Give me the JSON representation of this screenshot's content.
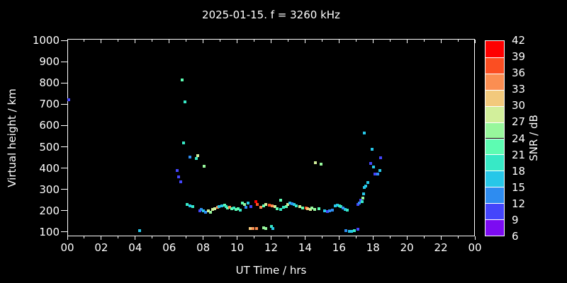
{
  "title": "2025-01-15. f = 3260 kHz",
  "colors": {
    "background": "#000000",
    "foreground": "#ffffff"
  },
  "axes": {
    "x": {
      "label": "UT Time / hrs",
      "range": [
        0,
        24
      ],
      "major_tick_hours": [
        0,
        2,
        4,
        6,
        8,
        10,
        12,
        14,
        16,
        18,
        20,
        22,
        24
      ],
      "tick_labels": [
        "00",
        "02",
        "04",
        "06",
        "08",
        "10",
        "12",
        "14",
        "16",
        "18",
        "20",
        "22",
        "00"
      ],
      "minor_tick_hours": [
        1,
        3,
        5,
        7,
        9,
        11,
        13,
        15,
        17,
        19,
        21,
        23
      ]
    },
    "y": {
      "label": "Virtual height / km",
      "range": [
        80,
        1007
      ],
      "major_tick_values": [
        100,
        200,
        300,
        400,
        500,
        600,
        700,
        800,
        900,
        1000
      ]
    }
  },
  "colorbar": {
    "label": "SNR / dB",
    "range": [
      6,
      42
    ],
    "tick_values": [
      42,
      39,
      36,
      33,
      30,
      27,
      24,
      21,
      18,
      15,
      12,
      9,
      6
    ],
    "segments": [
      {
        "from": 39,
        "to": 42,
        "color": "#fe0000"
      },
      {
        "from": 36,
        "to": 39,
        "color": "#fb4e22"
      },
      {
        "from": 33,
        "to": 36,
        "color": "#fb8e52"
      },
      {
        "from": 30,
        "to": 33,
        "color": "#f2c97c"
      },
      {
        "from": 27,
        "to": 30,
        "color": "#d2ef9b"
      },
      {
        "from": 24,
        "to": 27,
        "color": "#97f79c"
      },
      {
        "from": 21,
        "to": 24,
        "color": "#5dfcb2"
      },
      {
        "from": 18,
        "to": 21,
        "color": "#37e9c6"
      },
      {
        "from": 15,
        "to": 18,
        "color": "#27c7e8"
      },
      {
        "from": 12,
        "to": 15,
        "color": "#2e8cf0"
      },
      {
        "from": 9,
        "to": 12,
        "color": "#4445fb"
      },
      {
        "from": 6,
        "to": 9,
        "color": "#7c0bf2"
      }
    ]
  },
  "chart_data": {
    "type": "scatter",
    "title": "2025-01-15. f = 3260 kHz",
    "xlabel": "UT Time / hrs",
    "ylabel": "Virtual height / km",
    "zlabel": "SNR / dB",
    "xlim": [
      0,
      24
    ],
    "ylim": [
      80,
      1007
    ],
    "legend": "colorbar right, SNR 6-42 dB in 3 dB bins",
    "point_format": [
      "ut_hour",
      "virtual_height_km",
      "snr_db"
    ],
    "points": [
      [
        0.08,
        720,
        10
      ],
      [
        4.25,
        105,
        16
      ],
      [
        6.48,
        390,
        10
      ],
      [
        6.55,
        358,
        10
      ],
      [
        6.67,
        335,
        10
      ],
      [
        6.78,
        815,
        22
      ],
      [
        6.85,
        520,
        19
      ],
      [
        6.93,
        710,
        19
      ],
      [
        7.2,
        452,
        13
      ],
      [
        7.6,
        447,
        19
      ],
      [
        7.67,
        458,
        28
      ],
      [
        8.05,
        408,
        25
      ],
      [
        7.05,
        228,
        19
      ],
      [
        7.22,
        222,
        16
      ],
      [
        7.4,
        219,
        19
      ],
      [
        7.8,
        200,
        10
      ],
      [
        7.9,
        205,
        13
      ],
      [
        8.0,
        198,
        16
      ],
      [
        8.12,
        194,
        13
      ],
      [
        8.3,
        199,
        28
      ],
      [
        8.42,
        193,
        25
      ],
      [
        8.55,
        206,
        28
      ],
      [
        8.7,
        209,
        28
      ],
      [
        8.85,
        215,
        34
      ],
      [
        8.95,
        219,
        16
      ],
      [
        9.1,
        222,
        16
      ],
      [
        9.25,
        226,
        22
      ],
      [
        9.35,
        219,
        19
      ],
      [
        9.45,
        213,
        22
      ],
      [
        9.57,
        216,
        34
      ],
      [
        9.67,
        210,
        22
      ],
      [
        9.8,
        213,
        19
      ],
      [
        9.92,
        206,
        22
      ],
      [
        10.05,
        209,
        22
      ],
      [
        10.2,
        203,
        19
      ],
      [
        10.3,
        236,
        22
      ],
      [
        10.45,
        229,
        25
      ],
      [
        10.52,
        216,
        13
      ],
      [
        10.65,
        236,
        16
      ],
      [
        10.8,
        219,
        10
      ],
      [
        11.1,
        243,
        41
      ],
      [
        11.2,
        229,
        37
      ],
      [
        11.4,
        216,
        34
      ],
      [
        11.55,
        223,
        22
      ],
      [
        11.67,
        229,
        28
      ],
      [
        11.9,
        226,
        37
      ],
      [
        12.05,
        224,
        34
      ],
      [
        12.25,
        219,
        28
      ],
      [
        12.37,
        209,
        22
      ],
      [
        12.55,
        206,
        19
      ],
      [
        12.57,
        248,
        22
      ],
      [
        12.75,
        216,
        19
      ],
      [
        12.9,
        219,
        22
      ],
      [
        13.0,
        229,
        28
      ],
      [
        13.12,
        235,
        16
      ],
      [
        13.25,
        232,
        13
      ],
      [
        13.37,
        229,
        16
      ],
      [
        13.5,
        222,
        19
      ],
      [
        13.7,
        219,
        28
      ],
      [
        13.85,
        213,
        22
      ],
      [
        14.05,
        213,
        37
      ],
      [
        14.17,
        209,
        31
      ],
      [
        14.3,
        206,
        28
      ],
      [
        14.42,
        213,
        25
      ],
      [
        14.57,
        206,
        25
      ],
      [
        14.8,
        209,
        22
      ],
      [
        15.15,
        199,
        16
      ],
      [
        15.3,
        196,
        10
      ],
      [
        15.45,
        199,
        13
      ],
      [
        15.6,
        202,
        13
      ],
      [
        15.77,
        222,
        16
      ],
      [
        15.9,
        226,
        16
      ],
      [
        16.02,
        222,
        19
      ],
      [
        16.12,
        219,
        19
      ],
      [
        16.25,
        212,
        13
      ],
      [
        16.37,
        206,
        16
      ],
      [
        16.5,
        203,
        19
      ],
      [
        14.62,
        426,
        28
      ],
      [
        14.95,
        420,
        25
      ],
      [
        10.75,
        117,
        31
      ],
      [
        10.95,
        118,
        34
      ],
      [
        11.15,
        118,
        34
      ],
      [
        11.55,
        121,
        25
      ],
      [
        11.7,
        118,
        25
      ],
      [
        12.0,
        126,
        19
      ],
      [
        12.12,
        116,
        16
      ],
      [
        16.4,
        107,
        13
      ],
      [
        16.6,
        104,
        16
      ],
      [
        16.75,
        104,
        16
      ],
      [
        16.9,
        106,
        19
      ],
      [
        17.1,
        114,
        10
      ],
      [
        17.1,
        230,
        10
      ],
      [
        17.2,
        236,
        13
      ],
      [
        17.3,
        249,
        10
      ],
      [
        17.37,
        243,
        19
      ],
      [
        17.42,
        259,
        25
      ],
      [
        17.45,
        280,
        16
      ],
      [
        17.5,
        309,
        16
      ],
      [
        17.57,
        317,
        16
      ],
      [
        17.7,
        332,
        16
      ],
      [
        17.5,
        565,
        16
      ],
      [
        17.85,
        421,
        10
      ],
      [
        17.95,
        489,
        16
      ],
      [
        18.05,
        406,
        16
      ],
      [
        18.1,
        372,
        10
      ],
      [
        18.2,
        371,
        10
      ],
      [
        18.3,
        373,
        13
      ],
      [
        18.4,
        389,
        16
      ],
      [
        18.45,
        449,
        10
      ]
    ]
  }
}
